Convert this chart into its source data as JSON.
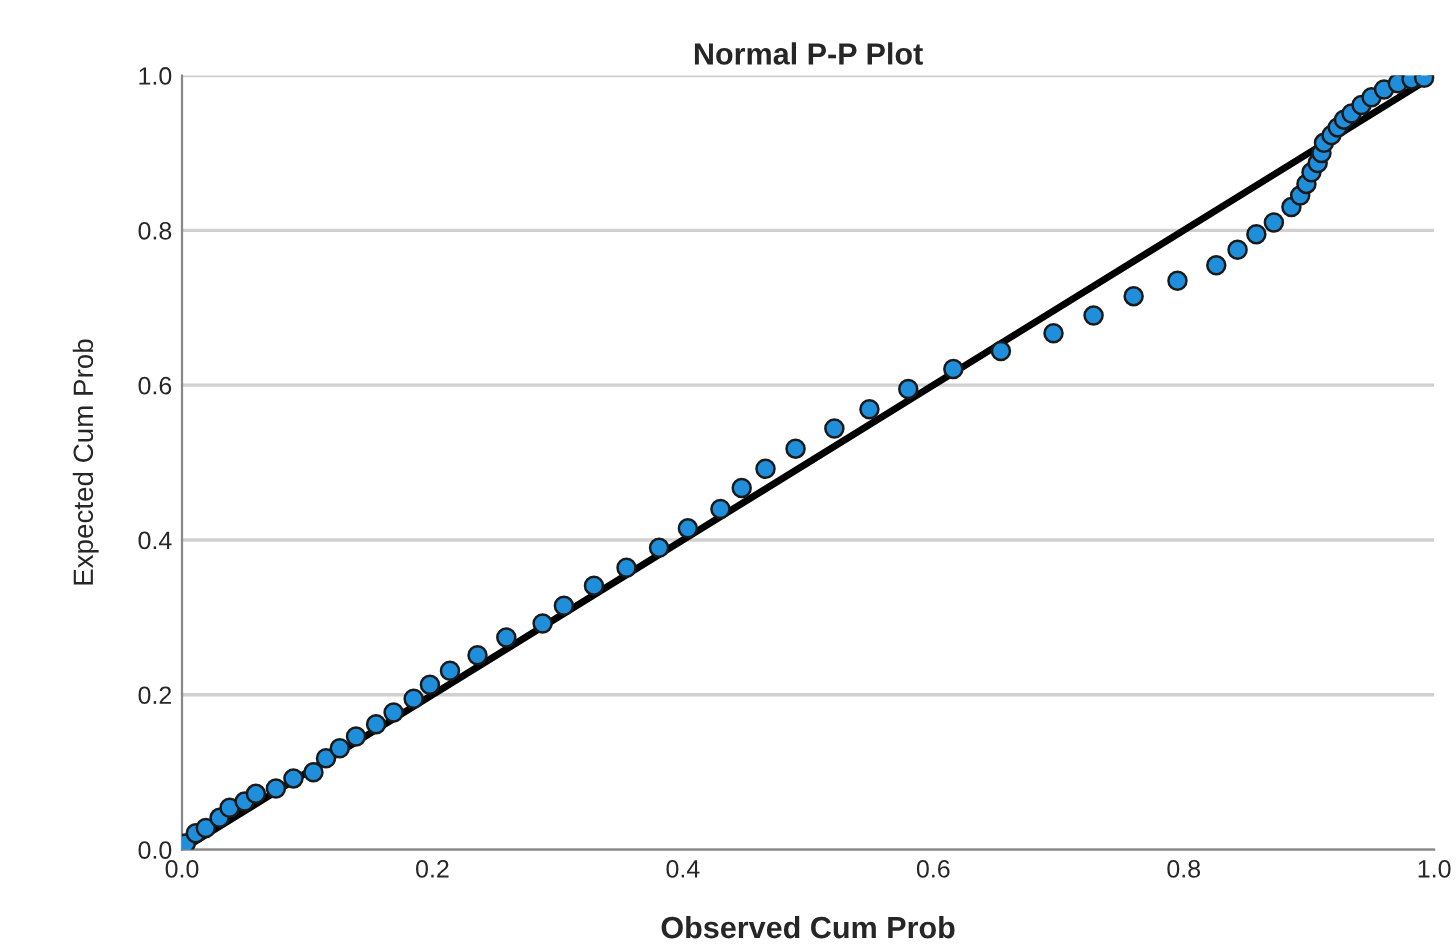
{
  "chart_data": {
    "type": "scatter",
    "title": "Normal P-P Plot",
    "xlabel": "Observed Cum Prob",
    "ylabel": "Expected Cum Prob",
    "series": [
      {
        "color": "#1f8fdb",
        "marker": "circle",
        "x": [
          0.003,
          0.011,
          0.019,
          0.03,
          0.038,
          0.05,
          0.059,
          0.075,
          0.089,
          0.105,
          0.115,
          0.126,
          0.139,
          0.155,
          0.169,
          0.185,
          0.198,
          0.214,
          0.236,
          0.259,
          0.288,
          0.305,
          0.329,
          0.355,
          0.381,
          0.404,
          0.43,
          0.447,
          0.466,
          0.49,
          0.521,
          0.549,
          0.58,
          0.616,
          0.654,
          0.696,
          0.728,
          0.76,
          0.795,
          0.826,
          0.843,
          0.858,
          0.872,
          0.886,
          0.893,
          0.898,
          0.902,
          0.907,
          0.91,
          0.912,
          0.918,
          0.923,
          0.928,
          0.934,
          0.942,
          0.95,
          0.96,
          0.971,
          0.982,
          0.992
        ],
        "values": [
          0.008,
          0.021,
          0.028,
          0.041,
          0.054,
          0.062,
          0.072,
          0.079,
          0.092,
          0.1,
          0.118,
          0.131,
          0.146,
          0.162,
          0.177,
          0.195,
          0.213,
          0.231,
          0.251,
          0.274,
          0.292,
          0.315,
          0.341,
          0.364,
          0.39,
          0.415,
          0.44,
          0.467,
          0.492,
          0.518,
          0.544,
          0.569,
          0.595,
          0.621,
          0.644,
          0.667,
          0.69,
          0.715,
          0.735,
          0.755,
          0.775,
          0.795,
          0.81,
          0.83,
          0.845,
          0.86,
          0.875,
          0.887,
          0.9,
          0.913,
          0.923,
          0.933,
          0.943,
          0.951,
          0.962,
          0.972,
          0.982,
          0.99,
          0.995,
          0.997
        ]
      },
      {
        "type": "line",
        "color": "#000000",
        "line_style": "solid",
        "x": [
          0,
          1
        ],
        "values": [
          0,
          1
        ]
      }
    ],
    "xlim": [
      0,
      1
    ],
    "ylim": [
      0,
      1
    ],
    "xticks": [
      {
        "value": 0,
        "label": "0.0"
      },
      0.2,
      0.4,
      0.6,
      0.8,
      {
        "value": 1,
        "label": "1.0"
      }
    ],
    "yticks": [
      {
        "value": 0,
        "label": "0.0"
      },
      0.2,
      0.4,
      0.6,
      0.8,
      {
        "value": 1,
        "label": "1.0"
      }
    ],
    "grid": "y",
    "legend": false
  }
}
